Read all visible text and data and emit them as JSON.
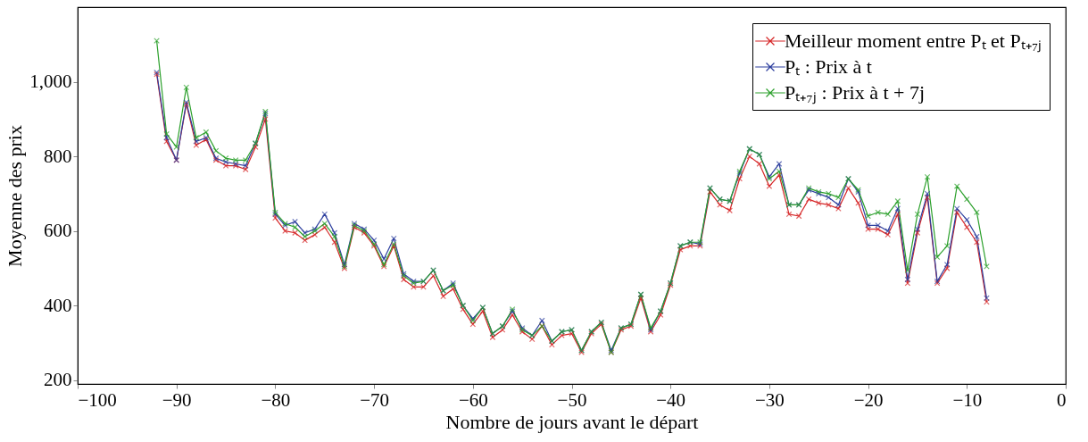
{
  "chart_data": {
    "type": "line",
    "xlabel": "Nombre de jours avant le départ",
    "ylabel": "Moyenne des prix",
    "x": [
      -92,
      -91,
      -90,
      -89,
      -88,
      -87,
      -86,
      -85,
      -84,
      -83,
      -82,
      -81,
      -80,
      -79,
      -78,
      -77,
      -76,
      -75,
      -74,
      -73,
      -72,
      -71,
      -70,
      -69,
      -68,
      -67,
      -66,
      -65,
      -64,
      -63,
      -62,
      -61,
      -60,
      -59,
      -58,
      -57,
      -56,
      -55,
      -54,
      -53,
      -52,
      -51,
      -50,
      -49,
      -48,
      -47,
      -46,
      -45,
      -44,
      -43,
      -42,
      -41,
      -40,
      -39,
      -38,
      -37,
      -36,
      -35,
      -34,
      -33,
      -32,
      -31,
      -30,
      -29,
      -28,
      -27,
      -26,
      -25,
      -24,
      -23,
      -22,
      -21,
      -20,
      -19,
      -18,
      -17,
      -16,
      -15,
      -14,
      -13,
      -12,
      -11,
      -10,
      -9,
      -8
    ],
    "series": [
      {
        "name": "Meilleur moment entre Pₜ et Pₜ₊₇ⱼ",
        "color": "#d62728",
        "values": [
          1020,
          840,
          790,
          940,
          830,
          845,
          790,
          775,
          775,
          765,
          825,
          900,
          635,
          600,
          595,
          575,
          590,
          610,
          570,
          500,
          610,
          595,
          560,
          505,
          560,
          470,
          450,
          450,
          480,
          425,
          445,
          390,
          350,
          385,
          315,
          335,
          375,
          330,
          310,
          345,
          295,
          320,
          325,
          275,
          325,
          350,
          275,
          335,
          345,
          420,
          330,
          375,
          455,
          550,
          560,
          560,
          705,
          670,
          655,
          740,
          800,
          780,
          720,
          750,
          645,
          640,
          685,
          675,
          670,
          660,
          715,
          675,
          605,
          605,
          590,
          645,
          460,
          595,
          690,
          460,
          500,
          650,
          610,
          570,
          410
        ]
      },
      {
        "name": "Pₜ : Prix à t",
        "color": "#2c3e9e",
        "values": [
          1025,
          850,
          790,
          945,
          840,
          850,
          795,
          785,
          780,
          775,
          835,
          915,
          645,
          615,
          625,
          595,
          605,
          645,
          595,
          510,
          620,
          605,
          575,
          525,
          580,
          485,
          465,
          465,
          495,
          440,
          460,
          400,
          365,
          395,
          325,
          345,
          385,
          340,
          320,
          360,
          305,
          330,
          335,
          280,
          330,
          355,
          280,
          340,
          350,
          430,
          335,
          385,
          460,
          560,
          570,
          565,
          715,
          685,
          680,
          755,
          820,
          805,
          745,
          780,
          670,
          670,
          710,
          700,
          690,
          670,
          740,
          705,
          615,
          615,
          600,
          660,
          470,
          605,
          700,
          465,
          510,
          660,
          630,
          585,
          420
        ]
      },
      {
        "name": "Pₜ₊₇ⱼ : Prix à t + 7j",
        "color": "#2ca02c",
        "values": [
          1110,
          860,
          825,
          985,
          850,
          865,
          815,
          795,
          790,
          790,
          835,
          920,
          650,
          620,
          610,
          585,
          600,
          620,
          585,
          505,
          615,
          600,
          565,
          510,
          565,
          480,
          460,
          465,
          495,
          440,
          455,
          400,
          360,
          395,
          325,
          345,
          390,
          335,
          320,
          345,
          305,
          330,
          335,
          280,
          330,
          355,
          275,
          340,
          350,
          430,
          340,
          385,
          460,
          560,
          570,
          570,
          715,
          685,
          680,
          760,
          820,
          805,
          740,
          760,
          670,
          670,
          715,
          705,
          700,
          690,
          740,
          710,
          640,
          650,
          645,
          680,
          495,
          645,
          745,
          530,
          560,
          720,
          685,
          650,
          505
        ]
      }
    ],
    "marker": "cross",
    "line_style": "solid",
    "legend": "top right",
    "grid": false,
    "xlim": [
      -100,
      0
    ],
    "xticks": [
      {
        "value": -100,
        "label": "−100"
      },
      {
        "value": -90,
        "label": "−90"
      },
      {
        "value": -80,
        "label": "−80"
      },
      {
        "value": -70,
        "label": "−70"
      },
      {
        "value": -60,
        "label": "−60"
      },
      {
        "value": -50,
        "label": "−50"
      },
      {
        "value": -40,
        "label": "−40"
      },
      {
        "value": -30,
        "label": "−30"
      },
      {
        "value": -20,
        "label": "−20"
      },
      {
        "value": -10,
        "label": "−10"
      },
      0
    ],
    "ylim": [
      190,
      1200
    ],
    "yticks": [
      200,
      400,
      600,
      800,
      {
        "value": 1000,
        "label": "1,000"
      }
    ]
  }
}
